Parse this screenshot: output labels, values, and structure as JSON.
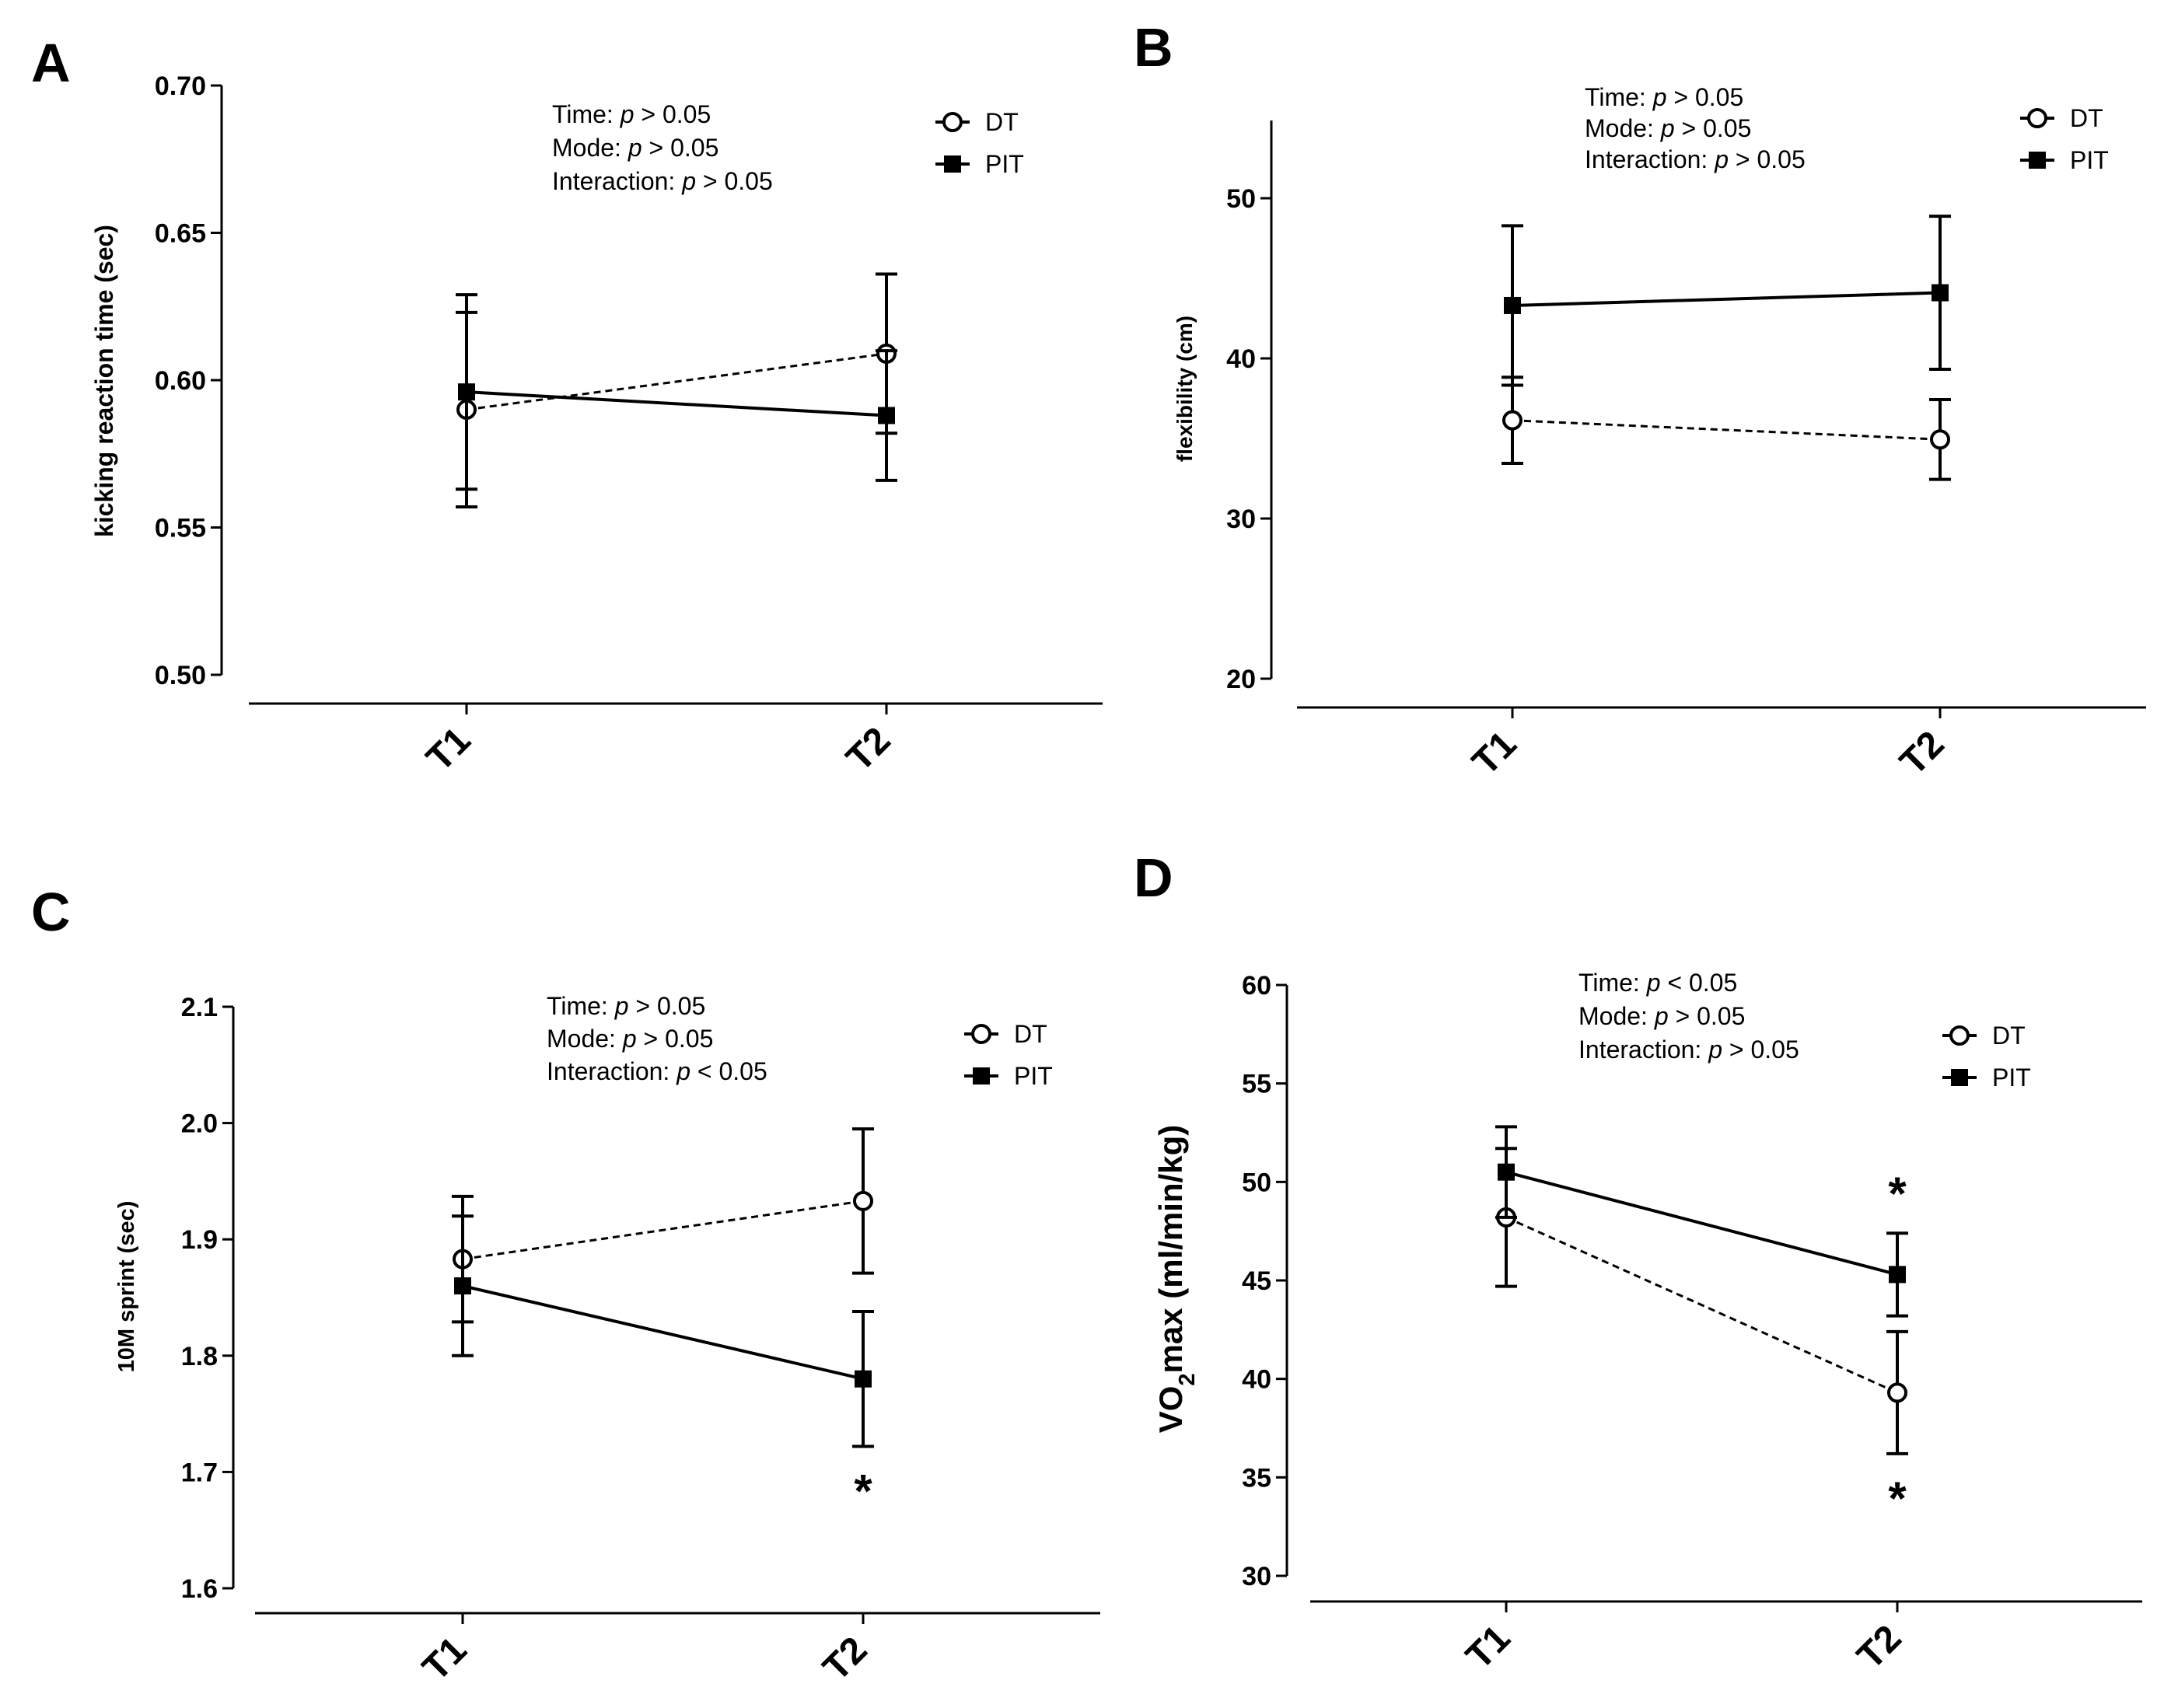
{
  "chart_data": [
    {
      "panel": "A",
      "type": "line",
      "ylabel": "kicking reaction time (sec)",
      "ylim": [
        0.5,
        0.7
      ],
      "yticks": [
        "0.50",
        "0.55",
        "0.60",
        "0.65",
        "0.70"
      ],
      "categories": [
        "T1",
        "T2"
      ],
      "stats": [
        "Time: p > 0.05",
        "Mode: p > 0.05",
        "Interaction: p > 0.05"
      ],
      "legend_position": "top-right",
      "series": [
        {
          "name": "DT",
          "marker": "open-circle",
          "line": "dashed",
          "values": [
            0.59,
            0.609
          ],
          "error": [
            0.033,
            0.027
          ],
          "asterisks": [
            "",
            ""
          ]
        },
        {
          "name": "PIT",
          "marker": "filled-square",
          "line": "solid",
          "values": [
            0.596,
            0.588
          ],
          "error": [
            0.033,
            0.022
          ],
          "asterisks": [
            "",
            ""
          ]
        }
      ]
    },
    {
      "panel": "B",
      "type": "line",
      "ylabel": "flexibility (cm)",
      "ylim": [
        20,
        55
      ],
      "yticks": [
        "20",
        "30",
        "40",
        "50"
      ],
      "categories": [
        "T1",
        "T2"
      ],
      "stats": [
        "Time: p > 0.05",
        "Mode: p > 0.05",
        "Interaction: p > 0.05"
      ],
      "legend_position": "top-right",
      "series": [
        {
          "name": "DT",
          "marker": "open-circle",
          "line": "dashed",
          "values": [
            36.2,
            35.0
          ],
          "error": [
            2.7,
            2.5
          ],
          "asterisks": [
            "",
            ""
          ]
        },
        {
          "name": "PIT",
          "marker": "filled-square",
          "line": "solid",
          "values": [
            43.4,
            44.2
          ],
          "error": [
            5.0,
            4.8
          ],
          "asterisks": [
            "",
            ""
          ]
        }
      ]
    },
    {
      "panel": "C",
      "type": "line",
      "ylabel": "10M sprint (sec)",
      "ylim": [
        1.6,
        2.1
      ],
      "yticks": [
        "1.6",
        "1.7",
        "1.8",
        "1.9",
        "2.0",
        "2.1"
      ],
      "categories": [
        "T1",
        "T2"
      ],
      "stats": [
        "Time: p > 0.05",
        "Mode: p > 0.05",
        "Interaction: p < 0.05"
      ],
      "legend_position": "top-right",
      "series": [
        {
          "name": "DT",
          "marker": "open-circle",
          "line": "dashed",
          "values": [
            1.883,
            1.933
          ],
          "error": [
            0.054,
            0.062
          ],
          "asterisks": [
            "",
            ""
          ]
        },
        {
          "name": "PIT",
          "marker": "filled-square",
          "line": "solid",
          "values": [
            1.86,
            1.78
          ],
          "error": [
            0.06,
            0.058
          ],
          "asterisks": [
            "",
            "*"
          ]
        }
      ]
    },
    {
      "panel": "D",
      "type": "line",
      "ylabel": "VO2max (ml/min/kg)",
      "ylim": [
        30,
        60
      ],
      "yticks": [
        "30",
        "35",
        "40",
        "45",
        "50",
        "55",
        "60"
      ],
      "categories": [
        "T1",
        "T2"
      ],
      "stats": [
        "Time: p < 0.05",
        "Mode: p > 0.05",
        "Interaction: p > 0.05"
      ],
      "legend_position": "top-right",
      "series": [
        {
          "name": "DT",
          "marker": "open-circle",
          "line": "dashed",
          "values": [
            48.2,
            39.3
          ],
          "error": [
            3.5,
            3.1
          ],
          "asterisks": [
            "",
            "*"
          ]
        },
        {
          "name": "PIT",
          "marker": "filled-square",
          "line": "solid",
          "values": [
            50.5,
            45.3
          ],
          "error": [
            2.3,
            2.1
          ],
          "asterisks": [
            "",
            "*"
          ]
        }
      ]
    }
  ]
}
